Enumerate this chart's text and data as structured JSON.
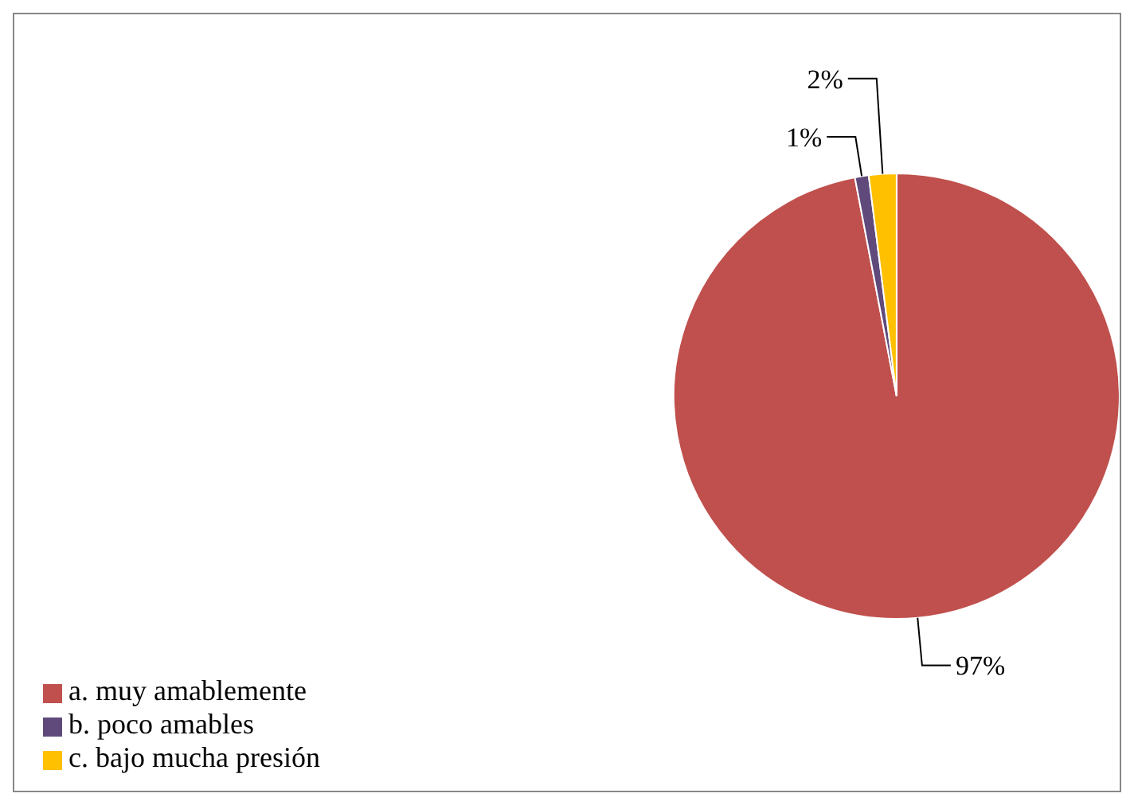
{
  "chart_data": {
    "type": "pie",
    "categories": [
      "a. muy amablemente",
      "b. poco amables",
      "c. bajo mucha presión"
    ],
    "values": [
      97,
      1,
      2
    ],
    "colors": [
      "#c0504d",
      "#604a7b",
      "#ffc000"
    ],
    "value_labels": [
      "97%",
      "1%",
      "2%"
    ],
    "legend": "bottom left"
  }
}
